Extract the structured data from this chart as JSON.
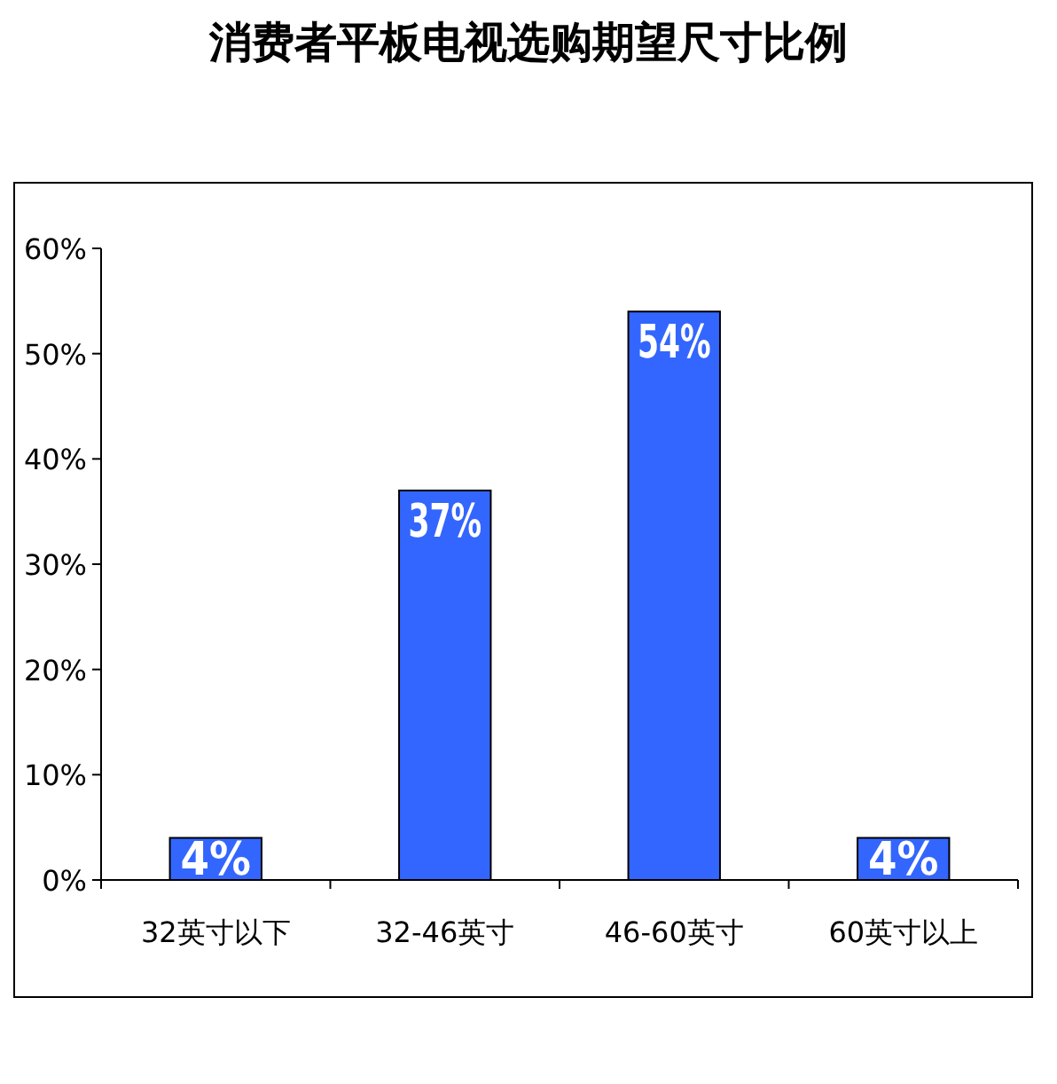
{
  "chart_data": {
    "type": "bar",
    "title": "消费者平板电视选购期望尺寸比例",
    "categories": [
      "32英寸以下",
      "32-46英寸",
      "46-60英寸",
      "60英寸以上"
    ],
    "values": [
      4,
      37,
      54,
      4
    ],
    "color": "#3366ff",
    "ylim": [
      0,
      60
    ],
    "yticks": [
      {
        "value": 0,
        "label": "0%"
      },
      {
        "value": 10,
        "label": "10%"
      },
      {
        "value": 20,
        "label": "20%"
      },
      {
        "value": 30,
        "label": "30%"
      },
      {
        "value": 40,
        "label": "40%"
      },
      {
        "value": 50,
        "label": "50%"
      },
      {
        "value": 60,
        "label": "60%"
      }
    ],
    "value_labels": [
      "4%",
      "37%",
      "54%",
      "4%"
    ]
  }
}
